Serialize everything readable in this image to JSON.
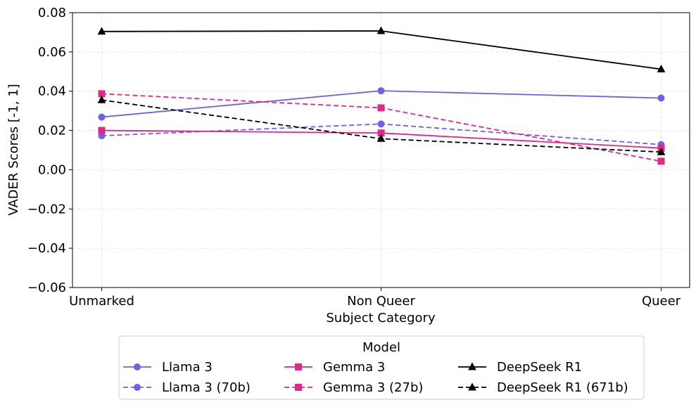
{
  "chart_data": {
    "type": "line",
    "xlabel": "Subject Category",
    "ylabel": "VADER Scores [-1, 1]",
    "categories": [
      "Unmarked",
      "Non Queer",
      "Queer"
    ],
    "ylim": [
      -0.06,
      0.08
    ],
    "yticks": [
      -0.06,
      -0.04,
      -0.02,
      0.0,
      0.02,
      0.04,
      0.06,
      0.08
    ],
    "ytick_labels": [
      "−0.06",
      "−0.04",
      "−0.02",
      "0.00",
      "0.02",
      "0.04",
      "0.06",
      "0.08"
    ],
    "grid": true,
    "legend": {
      "title": "Model",
      "placement": "bottom-center",
      "columns": 3
    },
    "series": [
      {
        "name": "Llama 3",
        "values": [
          0.0268,
          0.0402,
          0.0365
        ],
        "color": "#7060e8",
        "dash": "solid",
        "marker": "circle"
      },
      {
        "name": "Llama 3 (70b)",
        "values": [
          0.0173,
          0.0233,
          0.0128
        ],
        "color": "#7060e8",
        "dash": "dashed",
        "marker": "circle"
      },
      {
        "name": "Gemma 3",
        "values": [
          0.02,
          0.0187,
          0.011
        ],
        "color": "#e0288a",
        "dash": "solid",
        "marker": "square"
      },
      {
        "name": "Gemma 3 (27b)",
        "values": [
          0.0387,
          0.0315,
          0.0043
        ],
        "color": "#e0288a",
        "dash": "dashed",
        "marker": "square"
      },
      {
        "name": "DeepSeek R1",
        "values": [
          0.0704,
          0.0707,
          0.0512
        ],
        "color": "#000000",
        "dash": "solid",
        "marker": "triangle"
      },
      {
        "name": "DeepSeek R1 (671b)",
        "values": [
          0.0355,
          0.0158,
          0.009
        ],
        "color": "#000000",
        "dash": "dashed",
        "marker": "triangle"
      }
    ]
  }
}
